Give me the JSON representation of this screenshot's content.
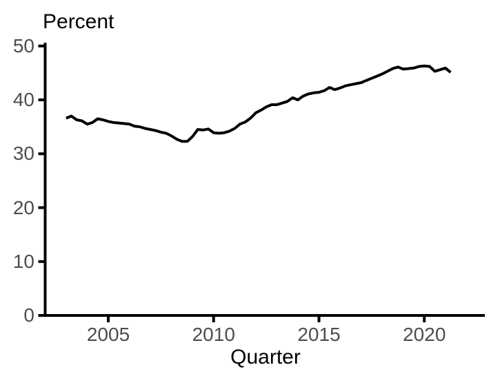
{
  "labels": {
    "y_axis_title": "Percent",
    "x_axis_title": "Quarter"
  },
  "colors": {
    "background": "#ffffff",
    "axis": "#000000",
    "line": "#000000",
    "tick_label": "#4d4d4d",
    "axis_title": "#000000"
  },
  "chart_data": {
    "type": "line",
    "title": "",
    "ylabel": "Percent",
    "xlabel": "Quarter",
    "grid": false,
    "legend": null,
    "x_ticks": [
      2005,
      2010,
      2015,
      2020
    ],
    "y_ticks": [
      0,
      10,
      20,
      30,
      40,
      50
    ],
    "xlim": [
      2002,
      2022.9
    ],
    "ylim": [
      0,
      50.6
    ],
    "x_start": 2003.0,
    "x_step": 0.25,
    "series": [
      {
        "name": "Percent",
        "color": "#000000",
        "values": [
          36.6,
          37.0,
          36.3,
          36.1,
          35.5,
          35.8,
          36.5,
          36.3,
          36.0,
          35.8,
          35.7,
          35.6,
          35.5,
          35.1,
          35.0,
          34.7,
          34.5,
          34.3,
          34.0,
          33.8,
          33.3,
          32.7,
          32.3,
          32.3,
          33.2,
          34.5,
          34.4,
          34.6,
          33.9,
          33.8,
          33.9,
          34.2,
          34.7,
          35.5,
          35.9,
          36.6,
          37.6,
          38.1,
          38.7,
          39.1,
          39.1,
          39.4,
          39.7,
          40.4,
          40.0,
          40.7,
          41.1,
          41.3,
          41.4,
          41.7,
          42.3,
          41.9,
          42.2,
          42.6,
          42.8,
          43.0,
          43.2,
          43.6,
          44.0,
          44.4,
          44.8,
          45.3,
          45.8,
          46.1,
          45.7,
          45.8,
          45.9,
          46.2,
          46.3,
          46.2,
          45.3,
          45.6,
          45.9,
          45.1
        ]
      }
    ]
  }
}
